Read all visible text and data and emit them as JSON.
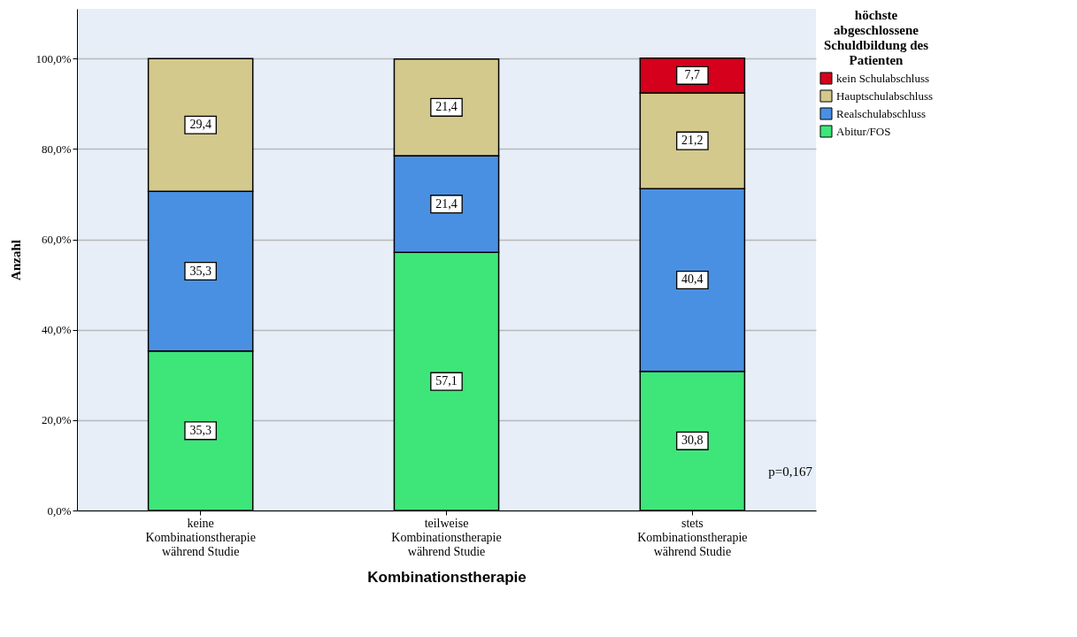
{
  "chart_data": {
    "type": "bar",
    "stacked": true,
    "xlabel": "Kombinationstherapie",
    "ylabel": "Anzahl",
    "legend_title": "höchste abgeschlossene Schuldbildung des Patienten",
    "legend": "top right",
    "grid": "y",
    "categories": [
      "keine Kombinationstherapie während Studie",
      "teilweise Kombinationstherapie während Studie",
      "stets Kombinationstherapie während Studie"
    ],
    "series": [
      {
        "name": "Abitur/FOS",
        "color": "#3ee67a",
        "values": [
          35.3,
          57.1,
          30.8
        ],
        "value_labels": [
          "35,3",
          "57,1",
          "30,8"
        ]
      },
      {
        "name": "Realschulabschluss",
        "color": "#4a90e2",
        "values": [
          35.3,
          21.4,
          40.4
        ],
        "value_labels": [
          "35,3",
          "21,4",
          "40,4"
        ]
      },
      {
        "name": "Hauptschulabschluss",
        "color": "#d4c98c",
        "values": [
          29.4,
          21.4,
          21.2
        ],
        "value_labels": [
          "29,4",
          "21,4",
          "21,2"
        ]
      },
      {
        "name": "kein Schulabschluss",
        "color": "#d4001c",
        "values": [
          null,
          null,
          7.7
        ],
        "value_labels": [
          null,
          null,
          "7,7"
        ]
      }
    ],
    "ylim": [
      0,
      111
    ],
    "yticks": [
      {
        "value": 0,
        "label": "0,0%"
      },
      {
        "value": 20,
        "label": "20,0%"
      },
      {
        "value": 40,
        "label": "40,0%"
      },
      {
        "value": 60,
        "label": "60,0%"
      },
      {
        "value": 80,
        "label": "80,0%"
      },
      {
        "value": 100,
        "label": "100,0%"
      }
    ],
    "annotations": [
      "p=0,167"
    ]
  }
}
